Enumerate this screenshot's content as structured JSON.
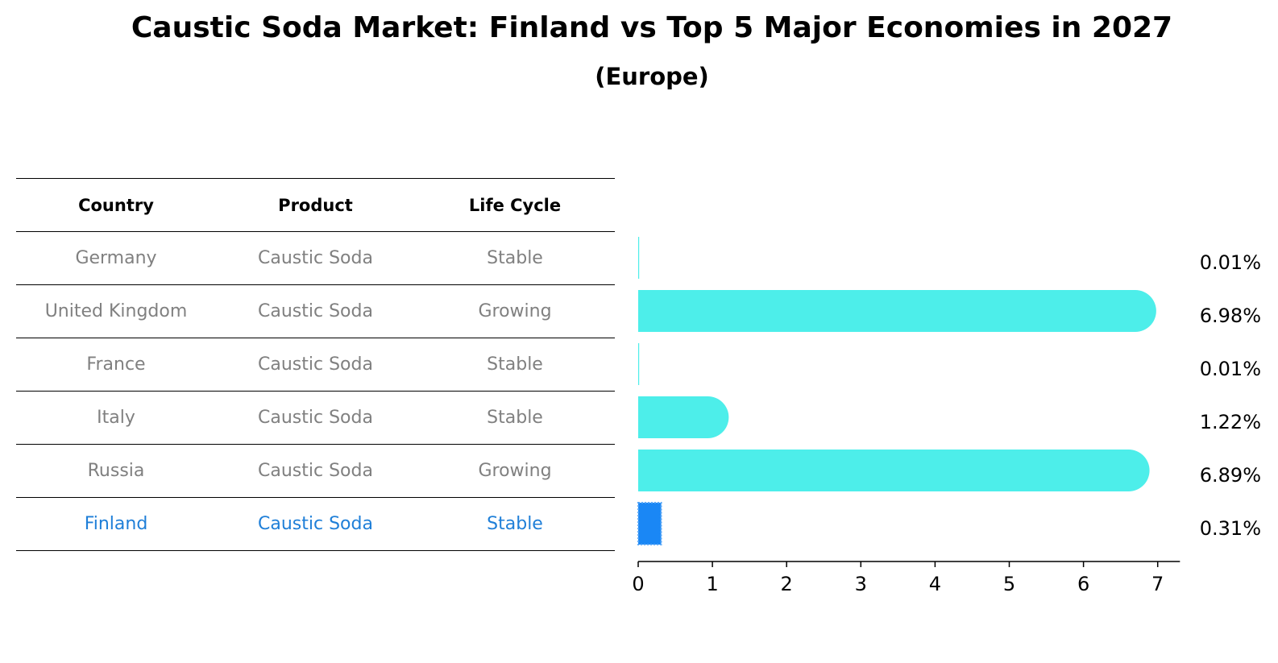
{
  "title": "Caustic Soda Market: Finland vs Top 5 Major Economies in 2027",
  "subtitle": "(Europe)",
  "table": {
    "headers": [
      "Country",
      "Product",
      "Life Cycle"
    ],
    "rows": [
      {
        "country": "Germany",
        "product": "Caustic Soda",
        "life_cycle": "Stable"
      },
      {
        "country": "United Kingdom",
        "product": "Caustic Soda",
        "life_cycle": "Growing"
      },
      {
        "country": "France",
        "product": "Caustic Soda",
        "life_cycle": "Stable"
      },
      {
        "country": "Italy",
        "product": "Caustic Soda",
        "life_cycle": "Stable"
      },
      {
        "country": "Russia",
        "product": "Caustic Soda",
        "life_cycle": "Growing"
      },
      {
        "country": "Finland",
        "product": "Caustic Soda",
        "life_cycle": "Stable"
      }
    ]
  },
  "chart_data": {
    "type": "bar",
    "orientation": "horizontal",
    "categories": [
      "Germany",
      "United Kingdom",
      "France",
      "Italy",
      "Russia",
      "Finland"
    ],
    "values": [
      0.01,
      6.98,
      0.01,
      1.22,
      6.89,
      0.31
    ],
    "value_labels": [
      "0.01%",
      "6.98%",
      "0.01%",
      "1.22%",
      "6.89%",
      "0.31%"
    ],
    "highlight_index": 5,
    "xlim": [
      0,
      7.3
    ],
    "xticks": [
      0,
      1,
      2,
      3,
      4,
      5,
      6,
      7
    ],
    "xtick_labels": [
      "0",
      "1",
      "2",
      "3",
      "4",
      "5",
      "6",
      "7"
    ],
    "grid": false,
    "colors": {
      "bar": "#4deeea",
      "highlight": "#1a87f5",
      "label_highlight": "#1f7fd8",
      "label_default": "#808080"
    }
  }
}
